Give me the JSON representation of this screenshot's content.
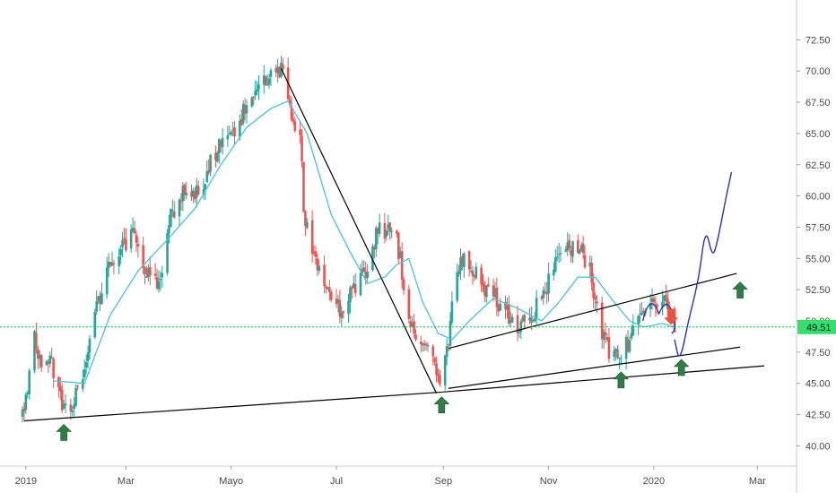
{
  "chart_data": {
    "type": "candlestick",
    "title": "",
    "xlabel": "",
    "ylabel": "",
    "ylim": [
      39.2,
      74.0
    ],
    "grid": false,
    "y_ticks": [
      "40.00",
      "42.50",
      "45.00",
      "47.50",
      "50.00",
      "52.50",
      "55.00",
      "57.50",
      "60.00",
      "62.50",
      "65.00",
      "67.50",
      "70.00",
      "72.50"
    ],
    "x_tick_labels": [
      "2019",
      "Mar",
      "Mayo",
      "Jul",
      "Sep",
      "Nov",
      "2020",
      "Mar"
    ],
    "x_tick_dates": [
      "2019-01-02",
      "2019-03-01",
      "2019-05-01",
      "2019-07-01",
      "2019-09-01",
      "2019-11-01",
      "2020-01-01",
      "2020-03-01"
    ],
    "last_price": "49.51",
    "last_price_value": 49.51,
    "date_range": [
      "2018-12-31",
      "2020-03-05"
    ],
    "price_path": [
      [
        "2018-12-31",
        42.5
      ],
      [
        "2019-01-03",
        44.5
      ],
      [
        "2019-01-07",
        49.0
      ],
      [
        "2019-01-11",
        46.5
      ],
      [
        "2019-01-16",
        47.5
      ],
      [
        "2019-01-21",
        44.0
      ],
      [
        "2019-01-25",
        42.8
      ],
      [
        "2019-01-29",
        43.5
      ],
      [
        "2019-02-04",
        45.5
      ],
      [
        "2019-02-11",
        50.5
      ],
      [
        "2019-02-19",
        54.5
      ],
      [
        "2019-02-27",
        56.0
      ],
      [
        "2019-03-06",
        57.0
      ],
      [
        "2019-03-13",
        54.0
      ],
      [
        "2019-03-20",
        52.5
      ],
      [
        "2019-03-27",
        58.5
      ],
      [
        "2019-04-05",
        61.0
      ],
      [
        "2019-04-12",
        60.0
      ],
      [
        "2019-04-19",
        63.0
      ],
      [
        "2019-04-26",
        64.5
      ],
      [
        "2019-05-03",
        65.0
      ],
      [
        "2019-05-10",
        67.5
      ],
      [
        "2019-05-17",
        68.5
      ],
      [
        "2019-05-24",
        70.0
      ],
      [
        "2019-05-30",
        70.3
      ],
      [
        "2019-06-05",
        66.0
      ],
      [
        "2019-06-10",
        65.5
      ],
      [
        "2019-06-12",
        59.0
      ],
      [
        "2019-06-17",
        55.5
      ],
      [
        "2019-06-26",
        53.0
      ],
      [
        "2019-07-03",
        51.0
      ],
      [
        "2019-07-10",
        52.5
      ],
      [
        "2019-07-17",
        53.5
      ],
      [
        "2019-07-24",
        57.0
      ],
      [
        "2019-07-31",
        57.5
      ],
      [
        "2019-08-05",
        56.5
      ],
      [
        "2019-08-09",
        53.0
      ],
      [
        "2019-08-14",
        49.5
      ],
      [
        "2019-08-20",
        48.0
      ],
      [
        "2019-08-27",
        46.5
      ],
      [
        "2019-08-30",
        44.6
      ],
      [
        "2019-09-03",
        47.5
      ],
      [
        "2019-09-06",
        51.5
      ],
      [
        "2019-09-12",
        55.0
      ],
      [
        "2019-09-16",
        54.5
      ],
      [
        "2019-09-23",
        53.0
      ],
      [
        "2019-09-30",
        52.0
      ],
      [
        "2019-10-08",
        50.5
      ],
      [
        "2019-10-15",
        49.2
      ],
      [
        "2019-10-22",
        50.5
      ],
      [
        "2019-10-29",
        52.0
      ],
      [
        "2019-11-05",
        55.0
      ],
      [
        "2019-11-12",
        56.0
      ],
      [
        "2019-11-19",
        55.5
      ],
      [
        "2019-11-25",
        54.0
      ],
      [
        "2019-11-28",
        51.5
      ],
      [
        "2019-12-03",
        48.5
      ],
      [
        "2019-12-09",
        47.0
      ],
      [
        "2019-12-13",
        47.5
      ],
      [
        "2019-12-18",
        48.5
      ],
      [
        "2019-12-23",
        51.0
      ],
      [
        "2019-12-30",
        52.0
      ],
      [
        "2020-01-06",
        51.5
      ],
      [
        "2020-01-10",
        50.5
      ],
      [
        "2020-01-13",
        49.5
      ]
    ],
    "moving_average": [
      [
        "2019-01-18",
        45.2
      ],
      [
        "2019-02-05",
        45.0
      ],
      [
        "2019-02-20",
        50.5
      ],
      [
        "2019-03-08",
        54.0
      ],
      [
        "2019-03-25",
        56.5
      ],
      [
        "2019-04-10",
        59.0
      ],
      [
        "2019-04-25",
        62.5
      ],
      [
        "2019-05-10",
        65.5
      ],
      [
        "2019-05-24",
        67.0
      ],
      [
        "2019-06-03",
        67.6
      ],
      [
        "2019-06-14",
        65.0
      ],
      [
        "2019-06-28",
        58.5
      ],
      [
        "2019-07-09",
        55.5
      ],
      [
        "2019-07-19",
        53.0
      ],
      [
        "2019-07-29",
        53.5
      ],
      [
        "2019-08-05",
        54.5
      ],
      [
        "2019-08-12",
        55.0
      ],
      [
        "2019-08-20",
        51.5
      ],
      [
        "2019-08-29",
        49.0
      ],
      [
        "2019-09-06",
        48.5
      ],
      [
        "2019-09-16",
        50.0
      ],
      [
        "2019-09-30",
        51.8
      ],
      [
        "2019-10-14",
        51.0
      ],
      [
        "2019-10-28",
        50.0
      ],
      [
        "2019-11-07",
        51.5
      ],
      [
        "2019-11-18",
        53.5
      ],
      [
        "2019-11-28",
        53.5
      ],
      [
        "2019-12-09",
        51.5
      ],
      [
        "2019-12-18",
        50.0
      ],
      [
        "2019-12-26",
        49.5
      ],
      [
        "2020-01-06",
        49.8
      ],
      [
        "2020-01-13",
        49.5
      ]
    ],
    "projection": [
      [
        "2020-01-13",
        48.5
      ],
      [
        "2020-01-16",
        46.6
      ],
      [
        "2020-01-21",
        50.0
      ],
      [
        "2020-01-27",
        53.3
      ],
      [
        "2020-01-31",
        57.6
      ],
      [
        "2020-02-04",
        55.0
      ],
      [
        "2020-02-07",
        56.4
      ],
      [
        "2020-02-12",
        60.0
      ],
      [
        "2020-02-15",
        61.9
      ]
    ],
    "trendlines": [
      [
        [
          "2019-01-01",
          42.0
        ],
        [
          "2019-08-31",
          44.3
        ]
      ],
      [
        [
          "2019-08-31",
          44.3
        ],
        [
          "2020-03-05",
          46.4
        ]
      ],
      [
        [
          "2019-05-30",
          70.2
        ],
        [
          "2019-08-28",
          44.2
        ]
      ],
      [
        [
          "2019-09-04",
          47.8
        ],
        [
          "2020-02-18",
          53.8
        ]
      ],
      [
        [
          "2019-09-04",
          44.6
        ],
        [
          "2020-02-20",
          47.9
        ]
      ]
    ],
    "arrows_up": [
      [
        "2019-01-24",
        41.0
      ],
      [
        "2019-08-31",
        43.2
      ],
      [
        "2019-12-13",
        45.2
      ],
      [
        "2020-01-17",
        46.2
      ],
      [
        "2020-02-20",
        52.4
      ]
    ],
    "arrows_down": [
      [
        "2020-01-11",
        50.4
      ]
    ],
    "colors": {
      "up_candle": "#26a69a",
      "down_candle": "#ef5350",
      "moving_average": "#45c6d6",
      "projection": "#2a2fc4",
      "trendline": "#000000",
      "arrow_up": "#2e7d46",
      "arrow_down": "#e8533f",
      "price_line": "#00c853",
      "price_badge": "#33e06b"
    }
  }
}
